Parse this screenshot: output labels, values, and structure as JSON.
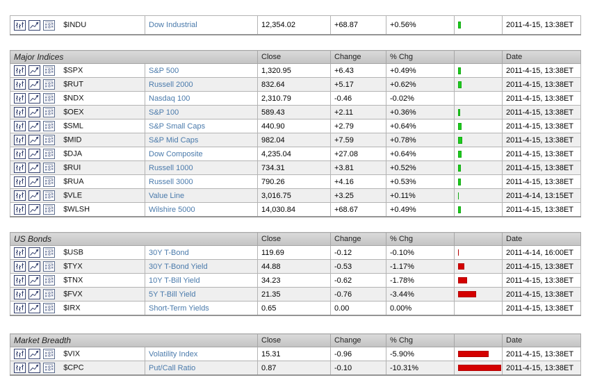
{
  "colors": {
    "positive_bar": "#1ecb1e",
    "negative_bar": "#d40000",
    "link": "#4a7aab",
    "header_bg": "#c9c9c9"
  },
  "icon_names": [
    "bar-chart-icon",
    "line-chart-icon",
    "point-figure-chart-icon"
  ],
  "top_row": {
    "symbol": "$INDU",
    "name": "Dow Industrial",
    "close": "12,354.02",
    "change": "+68.87",
    "pct": "+0.56%",
    "pct_value": 0.56,
    "date": "2011-4-15, 13:38ET"
  },
  "sections": [
    {
      "title": "Major Indices",
      "headers": {
        "close": "Close",
        "change": "Change",
        "pct": "% Chg",
        "date": "Date"
      },
      "rows": [
        {
          "symbol": "$SPX",
          "name": "S&P 500",
          "close": "1,320.95",
          "change": "+6.43",
          "pct": "+0.49%",
          "pct_value": 0.49,
          "date": "2011-4-15, 13:38ET"
        },
        {
          "symbol": "$RUT",
          "name": "Russell 2000",
          "close": "832.64",
          "change": "+5.17",
          "pct": "+0.62%",
          "pct_value": 0.62,
          "date": "2011-4-15, 13:38ET"
        },
        {
          "symbol": "$NDX",
          "name": "Nasdaq 100",
          "close": "2,310.79",
          "change": "-0.46",
          "pct": "-0.02%",
          "pct_value": -0.02,
          "date": "2011-4-15, 13:38ET"
        },
        {
          "symbol": "$OEX",
          "name": "S&P 100",
          "close": "589.43",
          "change": "+2.11",
          "pct": "+0.36%",
          "pct_value": 0.36,
          "date": "2011-4-15, 13:38ET"
        },
        {
          "symbol": "$SML",
          "name": "S&P Small Caps",
          "close": "440.90",
          "change": "+2.79",
          "pct": "+0.64%",
          "pct_value": 0.64,
          "date": "2011-4-15, 13:38ET"
        },
        {
          "symbol": "$MID",
          "name": "S&P Mid Caps",
          "close": "982.04",
          "change": "+7.59",
          "pct": "+0.78%",
          "pct_value": 0.78,
          "date": "2011-4-15, 13:38ET"
        },
        {
          "symbol": "$DJA",
          "name": "Dow Composite",
          "close": "4,235.04",
          "change": "+27.08",
          "pct": "+0.64%",
          "pct_value": 0.64,
          "date": "2011-4-15, 13:38ET"
        },
        {
          "symbol": "$RUI",
          "name": "Russell 1000",
          "close": "734.31",
          "change": "+3.81",
          "pct": "+0.52%",
          "pct_value": 0.52,
          "date": "2011-4-15, 13:38ET"
        },
        {
          "symbol": "$RUA",
          "name": "Russell 3000",
          "close": "790.26",
          "change": "+4.16",
          "pct": "+0.53%",
          "pct_value": 0.53,
          "date": "2011-4-15, 13:38ET"
        },
        {
          "symbol": "$VLE",
          "name": "Value Line",
          "close": "3,016.75",
          "change": "+3.25",
          "pct": "+0.11%",
          "pct_value": 0.11,
          "date": "2011-4-14, 13:15ET"
        },
        {
          "symbol": "$WLSH",
          "name": "Wilshire 5000",
          "close": "14,030.84",
          "change": "+68.67",
          "pct": "+0.49%",
          "pct_value": 0.49,
          "date": "2011-4-15, 13:38ET"
        }
      ]
    },
    {
      "title": "US Bonds",
      "headers": {
        "close": "Close",
        "change": "Change",
        "pct": "% Chg",
        "date": "Date"
      },
      "rows": [
        {
          "symbol": "$USB",
          "name": "30Y T-Bond",
          "close": "119.69",
          "change": "-0.12",
          "pct": "-0.10%",
          "pct_value": -0.1,
          "date": "2011-4-14, 16:00ET"
        },
        {
          "symbol": "$TYX",
          "name": "30Y T-Bond Yield",
          "close": "44.88",
          "change": "-0.53",
          "pct": "-1.17%",
          "pct_value": -1.17,
          "date": "2011-4-15, 13:38ET"
        },
        {
          "symbol": "$TNX",
          "name": "10Y T-Bill Yield",
          "close": "34.23",
          "change": "-0.62",
          "pct": "-1.78%",
          "pct_value": -1.78,
          "date": "2011-4-15, 13:38ET"
        },
        {
          "symbol": "$FVX",
          "name": "5Y T-Bill Yield",
          "close": "21.35",
          "change": "-0.76",
          "pct": "-3.44%",
          "pct_value": -3.44,
          "date": "2011-4-15, 13:38ET"
        },
        {
          "symbol": "$IRX",
          "name": "Short-Term Yields",
          "close": "0.65",
          "change": "0.00",
          "pct": "0.00%",
          "pct_value": 0.0,
          "date": "2011-4-15, 13:38ET"
        }
      ]
    },
    {
      "title": "Market Breadth",
      "headers": {
        "close": "Close",
        "change": "Change",
        "pct": "% Chg",
        "date": "Date"
      },
      "rows": [
        {
          "symbol": "$VIX",
          "name": "Volatility Index",
          "close": "15.31",
          "change": "-0.96",
          "pct": "-5.90%",
          "pct_value": -5.9,
          "date": "2011-4-15, 13:38ET"
        },
        {
          "symbol": "$CPC",
          "name": "Put/Call Ratio",
          "close": "0.87",
          "change": "-0.10",
          "pct": "-10.31%",
          "pct_value": -10.31,
          "date": "2011-4-15, 13:38ET"
        }
      ]
    }
  ]
}
